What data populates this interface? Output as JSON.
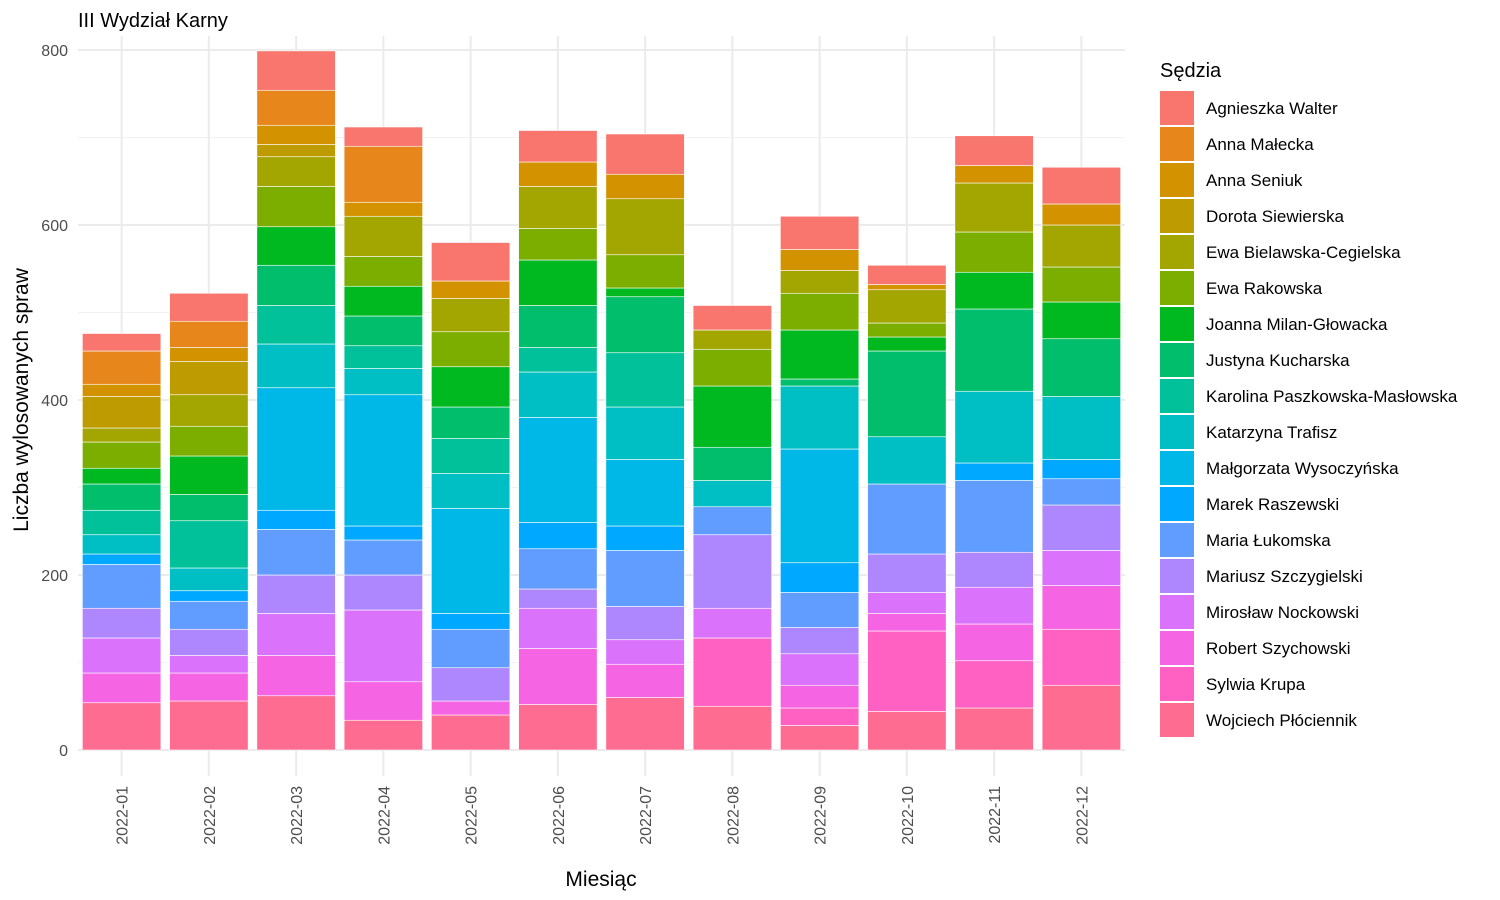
{
  "chart_data": {
    "type": "bar",
    "stacked": true,
    "title": "III Wydział Karny",
    "xlabel": "Miesiąc",
    "ylabel": "Liczba wylosowanych spraw",
    "ylim": [
      0,
      820
    ],
    "yticks": [
      0,
      200,
      400,
      600,
      800
    ],
    "grid": true,
    "legend": {
      "title": "Sędzia",
      "position": "right"
    },
    "categories": [
      "2022-01",
      "2022-02",
      "2022-03",
      "2022-04",
      "2022-05",
      "2022-06",
      "2022-07",
      "2022-08",
      "2022-09",
      "2022-10",
      "2022-11",
      "2022-12"
    ],
    "series": [
      {
        "name": "Agnieszka Walter",
        "color": "#F8766D",
        "values": [
          20,
          32,
          45,
          22,
          44,
          36,
          46,
          28,
          38,
          22,
          34,
          42
        ]
      },
      {
        "name": "Anna Małecka",
        "color": "#E7861B",
        "values": [
          38,
          30,
          40,
          64,
          0,
          0,
          0,
          0,
          0,
          0,
          0,
          0
        ]
      },
      {
        "name": "Anna Seniuk",
        "color": "#D39200",
        "values": [
          14,
          16,
          22,
          16,
          20,
          28,
          28,
          0,
          24,
          6,
          20,
          24
        ]
      },
      {
        "name": "Dorota Siewierska",
        "color": "#BE9C00",
        "values": [
          36,
          38,
          14,
          0,
          0,
          0,
          0,
          0,
          0,
          0,
          0,
          0
        ]
      },
      {
        "name": "Ewa Bielawska-Cegielska",
        "color": "#A3A500",
        "values": [
          16,
          36,
          34,
          46,
          38,
          48,
          64,
          22,
          26,
          38,
          56,
          48
        ]
      },
      {
        "name": "Ewa Rakowska",
        "color": "#7CAE00",
        "values": [
          30,
          34,
          46,
          34,
          40,
          36,
          38,
          42,
          42,
          16,
          46,
          40
        ]
      },
      {
        "name": "Joanna Milan-Głowacka",
        "color": "#00B81F",
        "values": [
          18,
          44,
          44,
          34,
          46,
          52,
          10,
          70,
          56,
          16,
          42,
          42
        ]
      },
      {
        "name": "Justyna Kucharska",
        "color": "#00BE6C",
        "values": [
          30,
          30,
          46,
          34,
          36,
          48,
          64,
          38,
          8,
          98,
          94,
          66
        ]
      },
      {
        "name": "Karolina Paszkowska-Masłowska",
        "color": "#00C19A",
        "values": [
          28,
          54,
          44,
          26,
          40,
          28,
          62,
          0,
          0,
          0,
          0,
          0
        ]
      },
      {
        "name": "Katarzyna Trafisz",
        "color": "#00BFC4",
        "values": [
          22,
          26,
          50,
          30,
          40,
          52,
          60,
          30,
          72,
          54,
          82,
          72
        ]
      },
      {
        "name": "Małgorzata Wysoczyńska",
        "color": "#00B8E7",
        "values": [
          0,
          0,
          140,
          150,
          120,
          120,
          76,
          0,
          130,
          0,
          0,
          0
        ]
      },
      {
        "name": "Marek Raszewski",
        "color": "#00A9FF",
        "values": [
          12,
          12,
          22,
          16,
          18,
          30,
          28,
          0,
          34,
          0,
          20,
          22
        ]
      },
      {
        "name": "Maria Łukomska",
        "color": "#619CFF",
        "values": [
          50,
          32,
          52,
          40,
          44,
          46,
          64,
          32,
          40,
          80,
          82,
          30
        ]
      },
      {
        "name": "Mariusz Szczygielski",
        "color": "#AE87FF",
        "values": [
          34,
          30,
          44,
          40,
          38,
          22,
          38,
          84,
          30,
          44,
          40,
          52
        ]
      },
      {
        "name": "Mirosław Nockowski",
        "color": "#DB72FB",
        "values": [
          40,
          20,
          48,
          82,
          0,
          46,
          28,
          34,
          36,
          24,
          42,
          40
        ]
      },
      {
        "name": "Robert Szychowski",
        "color": "#F564E3",
        "values": [
          34,
          32,
          46,
          44,
          16,
          64,
          38,
          0,
          26,
          20,
          42,
          50
        ]
      },
      {
        "name": "Sylwia Krupa",
        "color": "#FF61C3",
        "values": [
          0,
          0,
          0,
          0,
          0,
          0,
          0,
          78,
          20,
          92,
          54,
          64
        ]
      },
      {
        "name": "Wojciech Płóciennik",
        "color": "#FF6C91",
        "values": [
          54,
          56,
          62,
          34,
          40,
          52,
          60,
          50,
          28,
          44,
          48,
          74
        ]
      }
    ]
  }
}
